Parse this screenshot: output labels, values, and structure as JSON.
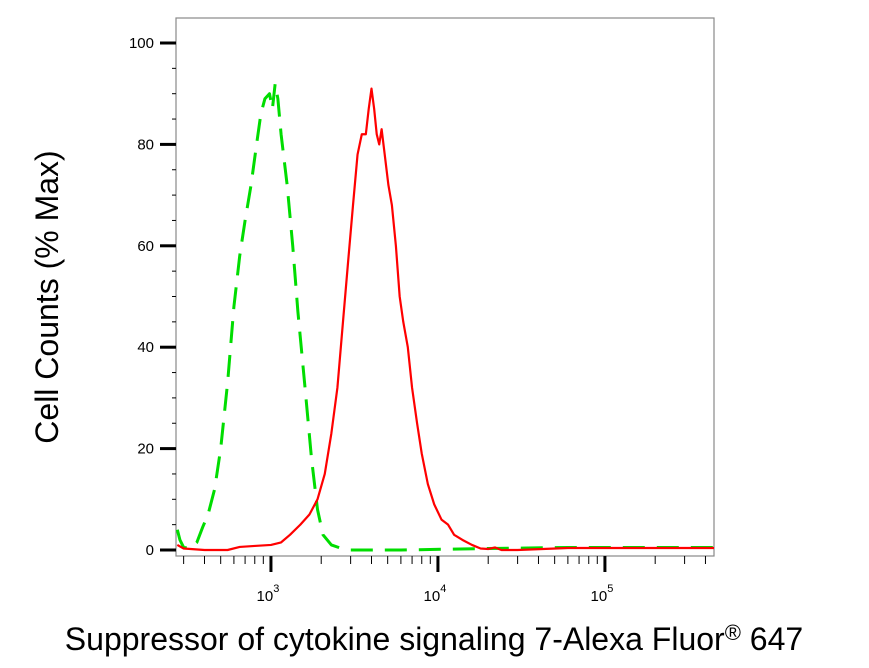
{
  "chart_data": {
    "type": "line",
    "ylabel": "Cell Counts (% Max)",
    "xlabel_main": "Suppressor of cytokine signaling 7-Alexa Fluor",
    "xlabel_reg": "®",
    "xlabel_tail": " 647",
    "x_scale": "log",
    "xlim": [
      270,
      450000
    ],
    "ylim": [
      0,
      105
    ],
    "grid": false,
    "y_ticks": [
      {
        "value": 0,
        "label": "0"
      },
      {
        "value": 20,
        "label": "20"
      },
      {
        "value": 40,
        "label": "40"
      },
      {
        "value": 60,
        "label": "60"
      },
      {
        "value": 80,
        "label": "80"
      },
      {
        "value": 100,
        "label": "100"
      }
    ],
    "x_ticks": [
      {
        "value": 1000,
        "base": "10",
        "exp": "3"
      },
      {
        "value": 10000,
        "base": "10",
        "exp": "4"
      },
      {
        "value": 100000,
        "base": "10",
        "exp": "5"
      }
    ],
    "series": [
      {
        "color": "#00dd00",
        "dash": "dashed",
        "points": [
          [
            275,
            4
          ],
          [
            285,
            2
          ],
          [
            300,
            0.5
          ],
          [
            330,
            0.3
          ],
          [
            360,
            1.5
          ],
          [
            390,
            4.5
          ],
          [
            420,
            7
          ],
          [
            460,
            12
          ],
          [
            500,
            20
          ],
          [
            550,
            33
          ],
          [
            600,
            48
          ],
          [
            650,
            58
          ],
          [
            700,
            65
          ],
          [
            760,
            72
          ],
          [
            820,
            80
          ],
          [
            870,
            86
          ],
          [
            920,
            89
          ],
          [
            980,
            90
          ],
          [
            1020,
            87
          ],
          [
            1060,
            92
          ],
          [
            1100,
            89
          ],
          [
            1150,
            82
          ],
          [
            1250,
            72
          ],
          [
            1350,
            60
          ],
          [
            1450,
            47
          ],
          [
            1600,
            32
          ],
          [
            1750,
            18
          ],
          [
            1900,
            8
          ],
          [
            2050,
            3
          ],
          [
            2300,
            1
          ],
          [
            2700,
            0.2
          ],
          [
            3000,
            0
          ],
          [
            6000,
            0
          ],
          [
            20000,
            0.3
          ],
          [
            60000,
            0.5
          ],
          [
            150000,
            0.5
          ],
          [
            450000,
            0.5
          ]
        ]
      },
      {
        "color": "#ff0000",
        "dash": "solid",
        "points": [
          [
            275,
            1
          ],
          [
            300,
            0.3
          ],
          [
            400,
            0
          ],
          [
            550,
            0
          ],
          [
            650,
            0.6
          ],
          [
            800,
            0.8
          ],
          [
            1000,
            1
          ],
          [
            1150,
            1.5
          ],
          [
            1300,
            3
          ],
          [
            1500,
            5
          ],
          [
            1700,
            7
          ],
          [
            1900,
            10
          ],
          [
            2100,
            15
          ],
          [
            2300,
            23
          ],
          [
            2500,
            32
          ],
          [
            2700,
            45
          ],
          [
            2900,
            57
          ],
          [
            3100,
            68
          ],
          [
            3300,
            78
          ],
          [
            3500,
            82
          ],
          [
            3700,
            82
          ],
          [
            3850,
            87
          ],
          [
            4000,
            91
          ],
          [
            4150,
            87
          ],
          [
            4300,
            82
          ],
          [
            4450,
            80
          ],
          [
            4600,
            83
          ],
          [
            4800,
            78
          ],
          [
            5050,
            72
          ],
          [
            5300,
            68
          ],
          [
            5600,
            60
          ],
          [
            5900,
            50
          ],
          [
            6200,
            45
          ],
          [
            6600,
            40
          ],
          [
            7000,
            32
          ],
          [
            7500,
            25
          ],
          [
            8000,
            19
          ],
          [
            8700,
            13
          ],
          [
            9500,
            9
          ],
          [
            10500,
            6
          ],
          [
            11500,
            5
          ],
          [
            12500,
            3
          ],
          [
            14000,
            2
          ],
          [
            16000,
            1
          ],
          [
            18000,
            0.3
          ],
          [
            20000,
            0.2
          ],
          [
            22000,
            0.5
          ],
          [
            24000,
            0
          ],
          [
            30000,
            0
          ],
          [
            60000,
            0.4
          ],
          [
            150000,
            0.4
          ],
          [
            450000,
            0.4
          ]
        ]
      }
    ]
  }
}
